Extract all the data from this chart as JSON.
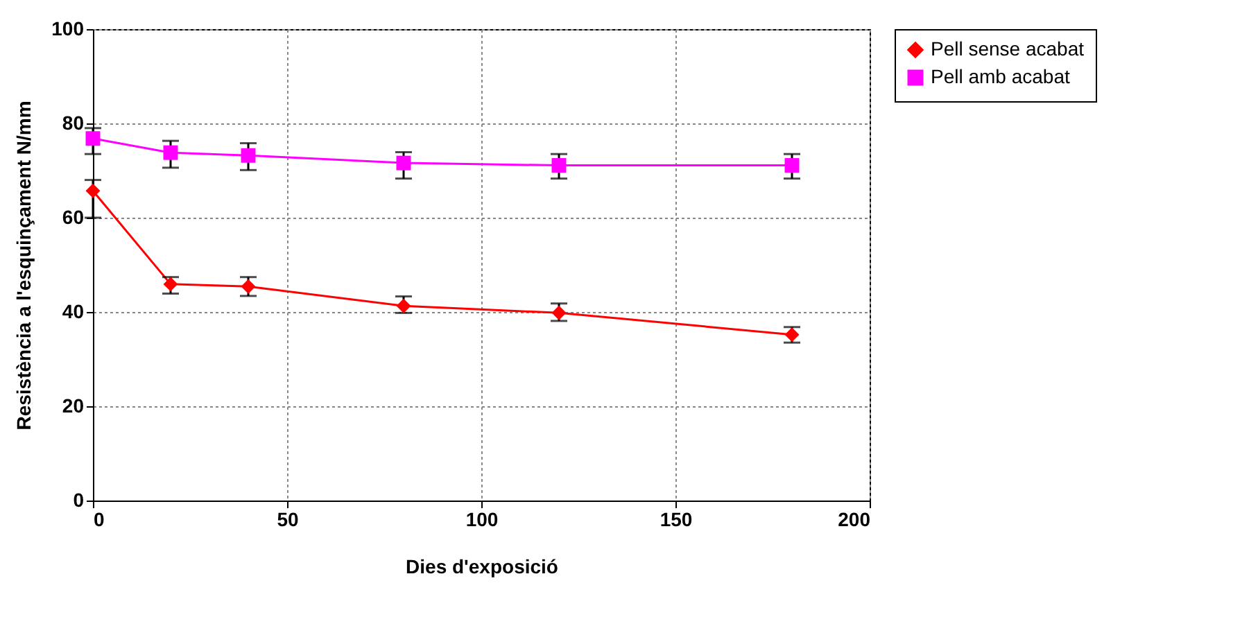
{
  "chart_data": {
    "type": "line",
    "xlabel": "Dies d'exposició",
    "ylabel": "Resistència a l'esquinçament N/mm",
    "x": [
      0,
      20,
      40,
      80,
      120,
      180
    ],
    "series": [
      {
        "name": "Pell sense acabat",
        "color": "#ff0000",
        "marker": "diamond",
        "values": [
          65.7,
          45.9,
          45.4,
          41.3,
          39.8,
          35.2
        ],
        "errors": [
          [
            60,
            68
          ],
          [
            43.9,
            47.4
          ],
          [
            43.4,
            47.4
          ],
          [
            39.8,
            43.3
          ],
          [
            38.1,
            41.8
          ],
          [
            33.5,
            36.8
          ]
        ]
      },
      {
        "name": "Pell amb acabat",
        "color": "#ff00ff",
        "marker": "square",
        "values": [
          76.8,
          73.8,
          73.2,
          71.6,
          71.1,
          71.1
        ],
        "errors": [
          [
            73.5,
            79
          ],
          [
            70.6,
            76.3
          ],
          [
            70.1,
            75.8
          ],
          [
            68.3,
            73.9
          ],
          [
            68.3,
            73.5
          ],
          [
            68.3,
            73.5
          ]
        ]
      }
    ],
    "xlim": [
      0,
      200
    ],
    "xticks": [
      0,
      50,
      100,
      150,
      200
    ],
    "ylim": [
      0,
      100
    ],
    "yticks": [
      0,
      20,
      40,
      60,
      80,
      100
    ],
    "grid": true,
    "legend": "right"
  }
}
